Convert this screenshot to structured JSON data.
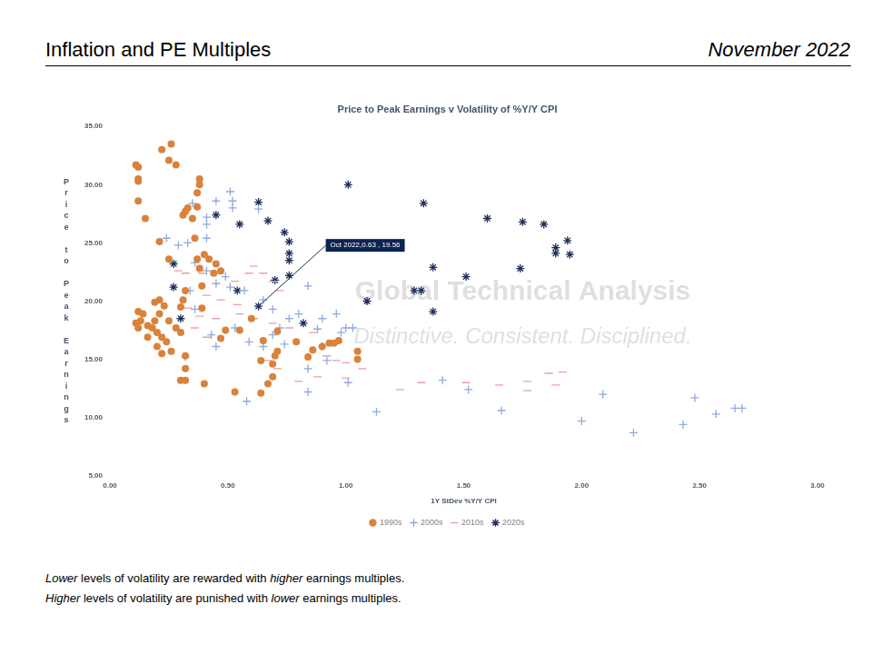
{
  "header": {
    "title": "Inflation and PE Multiples",
    "date": "November 2022"
  },
  "chart_data": {
    "type": "scatter",
    "title": "Price to Peak Earnings v Volatility of %Y/Y CPI",
    "x_label": "1Y StDev %Y/Y CPI",
    "y_label": "Price to Peak Earnings",
    "xlim": [
      0,
      3
    ],
    "xticks": [
      {
        "value": 0,
        "label": "0.00"
      },
      {
        "value": 0.5,
        "label": "0.50"
      },
      {
        "value": 1,
        "label": "1.00"
      },
      {
        "value": 1.5,
        "label": "1.50"
      },
      {
        "value": 2,
        "label": "2.00"
      },
      {
        "value": 2.5,
        "label": "2.50"
      },
      {
        "value": 3,
        "label": "3.00"
      }
    ],
    "ylim": [
      5,
      35
    ],
    "yticks": [
      {
        "value": 5,
        "label": "5.00"
      },
      {
        "value": 10,
        "label": "10.00"
      },
      {
        "value": 15,
        "label": "15.00"
      },
      {
        "value": 20,
        "label": "20.00"
      },
      {
        "value": 25,
        "label": "25.00"
      },
      {
        "value": 30,
        "label": "30.00"
      },
      {
        "value": 35,
        "label": "35.00"
      }
    ],
    "grid": false,
    "legend": "bottom",
    "watermark": [
      "Global Technical Analysis",
      "Distinctive. Consistent. Disciplined."
    ],
    "annotations": [
      {
        "x": 0.63,
        "y": 19.56,
        "text": "Oct 2022,0.63 , 19.56"
      }
    ],
    "series": [
      {
        "name": "1990s",
        "color": "#d9823b",
        "marker": "circle",
        "x": [
          0.11,
          0.12,
          0.12,
          0.12,
          0.12,
          0.15,
          0.22,
          0.25,
          0.26,
          0.28,
          0.38,
          0.38,
          0.37,
          0.32,
          0.31,
          0.33,
          0.35,
          0.37,
          0.36,
          0.37,
          0.38,
          0.21,
          0.25,
          0.4,
          0.42,
          0.44,
          0.45,
          0.47,
          0.39,
          0.39,
          0.32,
          0.31,
          0.3,
          0.23,
          0.21,
          0.19,
          0.14,
          0.12,
          0.13,
          0.11,
          0.12,
          0.16,
          0.18,
          0.2,
          0.22,
          0.24,
          0.2,
          0.22,
          0.26,
          0.16,
          0.19,
          0.21,
          0.25,
          0.28,
          0.3,
          0.32,
          0.32,
          0.3,
          0.32,
          0.4,
          0.47,
          0.49,
          0.53,
          0.64,
          0.67,
          0.69,
          0.69,
          0.7,
          0.71,
          0.64,
          0.65,
          0.71,
          0.79,
          0.84,
          0.86,
          0.9,
          0.93,
          0.95,
          0.97,
          1.05,
          1.05,
          0.55,
          0.6
        ],
        "values": [
          31.7,
          31.5,
          30.5,
          30.3,
          28.6,
          27.1,
          33.0,
          32.1,
          33.5,
          31.7,
          30.5,
          30.0,
          29.3,
          27.7,
          27.4,
          28.0,
          27.1,
          28.1,
          25.4,
          23.6,
          22.8,
          25.1,
          23.6,
          24.0,
          23.6,
          22.4,
          23.2,
          22.6,
          21.3,
          19.4,
          20.9,
          20.1,
          19.5,
          19.6,
          20.1,
          19.9,
          18.9,
          19.1,
          18.3,
          18.1,
          17.7,
          17.9,
          17.7,
          17.3,
          16.9,
          16.5,
          16.1,
          15.5,
          15.7,
          16.9,
          18.3,
          18.9,
          18.3,
          17.7,
          17.3,
          15.3,
          14.2,
          13.2,
          13.2,
          12.9,
          16.8,
          17.5,
          12.2,
          12.1,
          12.9,
          13.5,
          14.6,
          15.3,
          15.7,
          14.9,
          16.6,
          17.4,
          16.5,
          15.2,
          15.8,
          16.1,
          16.4,
          16.4,
          16.6,
          15.7,
          15.0,
          17.5,
          18.5
        ]
      },
      {
        "name": "2000s",
        "color": "#8faadc",
        "marker": "cross",
        "x": [
          0.24,
          0.29,
          0.33,
          0.36,
          0.35,
          0.41,
          0.41,
          0.45,
          0.51,
          0.52,
          0.52,
          0.63,
          0.41,
          0.49,
          0.34,
          0.36,
          0.45,
          0.51,
          0.57,
          0.65,
          0.69,
          0.76,
          0.8,
          0.84,
          0.88,
          0.9,
          0.96,
          1.0,
          1.03,
          0.98,
          0.53,
          0.59,
          0.65,
          0.69,
          0.72,
          0.74,
          0.84,
          0.92,
          0.9,
          0.43,
          0.45,
          0.32,
          0.58,
          0.84,
          1.01,
          1.13,
          1.41,
          1.52,
          1.66,
          2.0,
          2.09,
          2.22,
          2.43,
          2.48,
          2.57,
          2.65,
          2.68,
          0.41
        ],
        "values": [
          25.4,
          24.8,
          25.0,
          23.3,
          28.4,
          26.6,
          27.2,
          28.6,
          29.4,
          28.6,
          28.0,
          27.9,
          22.6,
          22.1,
          20.9,
          19.3,
          21.5,
          21.2,
          20.9,
          20.1,
          19.3,
          18.5,
          18.9,
          21.3,
          17.6,
          18.5,
          18.9,
          17.7,
          17.7,
          17.3,
          17.7,
          16.5,
          16.1,
          17.1,
          17.7,
          16.3,
          14.2,
          14.9,
          16.1,
          17.1,
          16.1,
          15.2,
          11.4,
          12.2,
          13.0,
          10.5,
          13.2,
          12.4,
          10.6,
          9.7,
          12.0,
          8.7,
          9.4,
          11.7,
          10.3,
          10.8,
          10.8,
          25.4
        ]
      },
      {
        "name": "2010s",
        "color": "#e8a0a0",
        "marker": "dash",
        "x": [
          0.29,
          0.32,
          0.39,
          0.45,
          0.53,
          0.59,
          0.61,
          0.65,
          0.69,
          0.72,
          0.41,
          0.47,
          0.54,
          0.33,
          0.38,
          0.45,
          0.36,
          0.41,
          0.55,
          0.61,
          0.69,
          0.76,
          0.86,
          0.92,
          0.96,
          1.0,
          1.07,
          1.0,
          0.67,
          0.71,
          0.8,
          0.88,
          1.23,
          1.32,
          1.51,
          1.65,
          1.77,
          1.77,
          1.89,
          1.92,
          1.86
        ],
        "values": [
          22.6,
          22.4,
          22.4,
          22.4,
          21.7,
          22.4,
          23.0,
          22.4,
          21.7,
          20.9,
          20.5,
          20.1,
          19.7,
          19.4,
          18.7,
          18.5,
          17.7,
          16.9,
          18.9,
          18.5,
          18.1,
          17.7,
          17.3,
          15.3,
          14.9,
          14.7,
          14.2,
          13.4,
          14.9,
          14.2,
          13.1,
          13.5,
          12.4,
          13.0,
          13.0,
          12.8,
          13.1,
          12.3,
          12.8,
          13.9,
          13.8
        ]
      },
      {
        "name": "2020s",
        "color": "#1f2d5c",
        "marker": "star",
        "x": [
          0.27,
          0.27,
          0.3,
          0.45,
          0.54,
          0.55,
          0.63,
          0.63,
          0.67,
          0.7,
          0.74,
          0.76,
          0.76,
          0.76,
          0.76,
          0.82,
          1.01,
          1.09,
          1.29,
          1.32,
          1.33,
          1.37,
          1.37,
          1.51,
          1.6,
          1.74,
          1.75,
          1.84,
          1.89,
          1.89,
          1.94,
          1.95
        ],
        "values": [
          23.2,
          21.2,
          18.5,
          27.4,
          20.9,
          26.6,
          28.5,
          19.56,
          26.9,
          21.8,
          25.9,
          25.1,
          24.1,
          23.5,
          22.2,
          18.1,
          30.0,
          20.0,
          20.9,
          20.9,
          28.4,
          22.9,
          19.1,
          22.1,
          27.1,
          22.8,
          26.8,
          26.6,
          24.6,
          24.1,
          25.2,
          24.0
        ]
      }
    ]
  },
  "notes": [
    [
      "Lower",
      " levels of volatility are rewarded with ",
      "higher",
      " earnings multiples."
    ],
    [
      "Higher",
      " levels of volatility are punished with ",
      "lower",
      " earnings multiples."
    ]
  ]
}
